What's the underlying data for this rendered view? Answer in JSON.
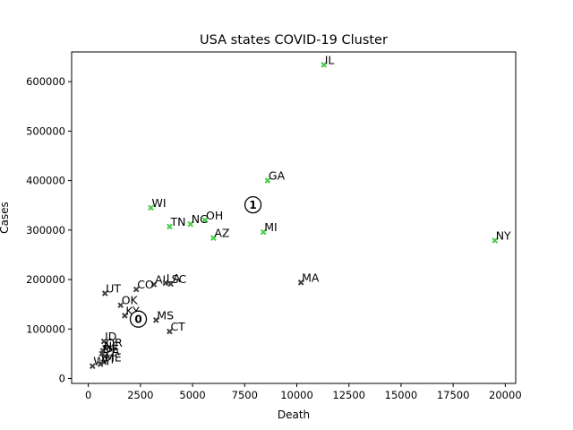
{
  "chart_data": {
    "type": "scatter",
    "title": "USA states COVID-19 Cluster",
    "xlabel": "Death",
    "ylabel": "Cases",
    "xlim": [
      -800,
      20500
    ],
    "ylim": [
      -10000,
      660000
    ],
    "xticks": [
      0,
      2500,
      5000,
      7500,
      10000,
      12500,
      15000,
      17500,
      20000
    ],
    "yticks": [
      0,
      100000,
      200000,
      300000,
      400000,
      500000,
      600000
    ],
    "marker": "x",
    "grid": false,
    "cluster_colors": {
      "0": "#404040",
      "1": "#44cc44"
    },
    "points": [
      {
        "label": "IL",
        "x": 11300,
        "y": 634000,
        "cluster": 1
      },
      {
        "label": "GA",
        "x": 8600,
        "y": 400000,
        "cluster": 1
      },
      {
        "label": "WI",
        "x": 3000,
        "y": 345000,
        "cluster": 1
      },
      {
        "label": "OH",
        "x": 5600,
        "y": 320000,
        "cluster": 1
      },
      {
        "label": "NC",
        "x": 4900,
        "y": 312000,
        "cluster": 1
      },
      {
        "label": "TN",
        "x": 3900,
        "y": 307000,
        "cluster": 1
      },
      {
        "label": "MI",
        "x": 8400,
        "y": 296000,
        "cluster": 1
      },
      {
        "label": "AZ",
        "x": 6000,
        "y": 284000,
        "cluster": 1
      },
      {
        "label": "NY",
        "x": 19500,
        "y": 279000,
        "cluster": 1
      },
      {
        "label": "MA",
        "x": 10200,
        "y": 194000,
        "cluster": 0
      },
      {
        "label": "AL",
        "x": 3150,
        "y": 190000,
        "cluster": 0
      },
      {
        "label": "LA",
        "x": 3700,
        "y": 193000,
        "cluster": 0
      },
      {
        "label": "SC",
        "x": 3950,
        "y": 191000,
        "cluster": 0
      },
      {
        "label": "CO",
        "x": 2300,
        "y": 180000,
        "cluster": 0
      },
      {
        "label": "UT",
        "x": 800,
        "y": 172000,
        "cluster": 0
      },
      {
        "label": "OK",
        "x": 1550,
        "y": 148000,
        "cluster": 0
      },
      {
        "label": "KY",
        "x": 1750,
        "y": 127000,
        "cluster": 0
      },
      {
        "label": "MS",
        "x": 3250,
        "y": 118000,
        "cluster": 0
      },
      {
        "label": "CT",
        "x": 3900,
        "y": 95000,
        "cluster": 0
      },
      {
        "label": "ID",
        "x": 750,
        "y": 75000,
        "cluster": 0
      },
      {
        "label": "OR",
        "x": 800,
        "y": 62000,
        "cluster": 0
      },
      {
        "label": "NE",
        "x": 700,
        "y": 56000,
        "cluster": 0
      },
      {
        "label": "DE",
        "x": 650,
        "y": 50000,
        "cluster": 0
      },
      {
        "label": "PA",
        "x": 800,
        "y": 45000,
        "cluster": 0
      },
      {
        "label": "ME",
        "x": 750,
        "y": 33000,
        "cluster": 0
      },
      {
        "label": "WY",
        "x": 200,
        "y": 25000,
        "cluster": 0
      },
      {
        "label": "VT",
        "x": 580,
        "y": 29000,
        "cluster": 0
      }
    ],
    "centroids": [
      {
        "label": "0",
        "x": 2400,
        "y": 120000
      },
      {
        "label": "1",
        "x": 7900,
        "y": 351000
      }
    ]
  }
}
